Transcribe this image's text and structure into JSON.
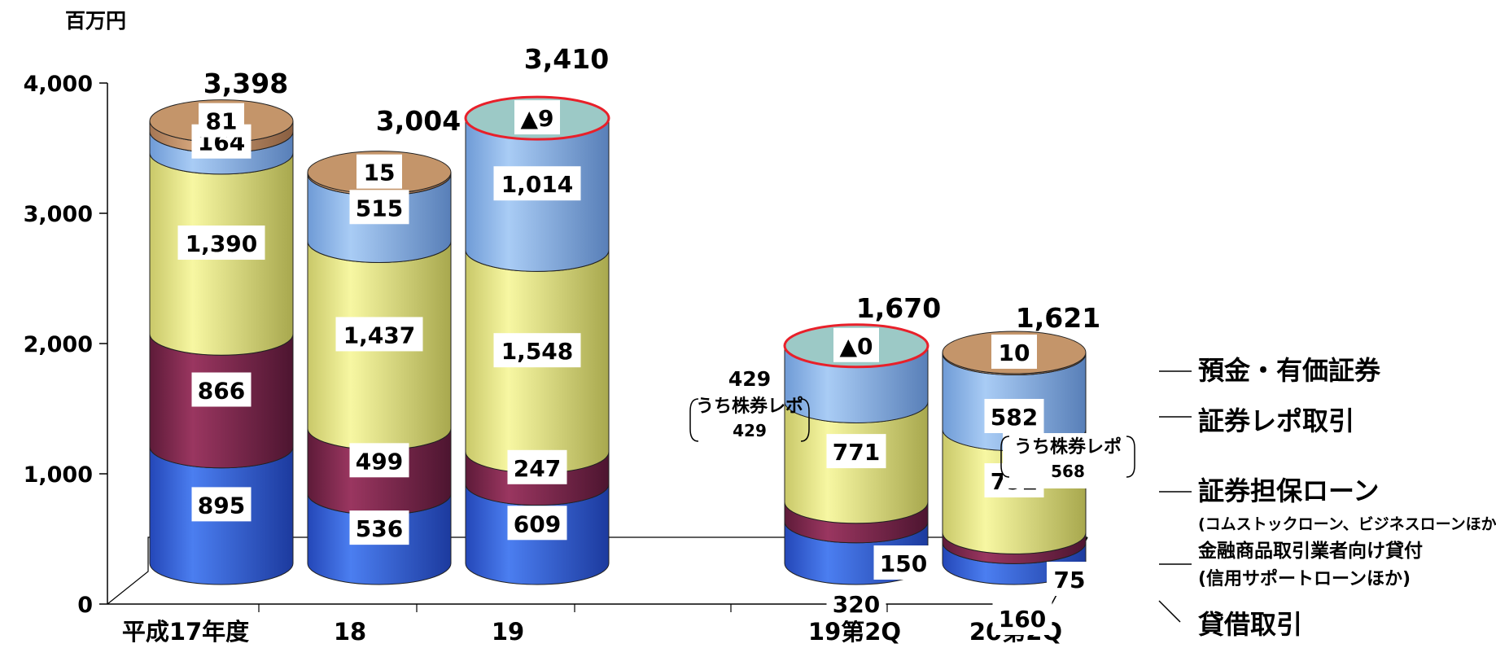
{
  "chart_data": {
    "type": "bar",
    "subtype": "stacked-cylinder-3d",
    "yunit": "百万円",
    "ylim": [
      0,
      4000
    ],
    "yticks": [
      "0",
      "1,000",
      "2,000",
      "3,000",
      "4,000"
    ],
    "categories": [
      "平成17年度",
      "18",
      "19",
      "19第2Q",
      "20第2Q"
    ],
    "series": [
      {
        "name": "貸借取引",
        "values": [
          895,
          536,
          609,
          320,
          160
        ]
      },
      {
        "name": "金融商品取引業者向け貸付",
        "values": [
          866,
          499,
          247,
          150,
          75
        ]
      },
      {
        "name": "証券担保ローン",
        "values": [
          1390,
          1437,
          1548,
          771,
          792
        ]
      },
      {
        "name": "証券レポ取引",
        "values": [
          164,
          515,
          1014,
          429,
          582
        ]
      },
      {
        "name": "預金・有価証券",
        "values": [
          81,
          15,
          -9,
          0,
          10
        ]
      }
    ],
    "totals": [
      "3,398",
      "3,004",
      "3,410",
      "1,670",
      "1,621"
    ],
    "value_labels": [
      [
        "895",
        "866",
        "1,390",
        "164",
        "81"
      ],
      [
        "536",
        "499",
        "1,437",
        "515",
        "15"
      ],
      [
        "609",
        "247",
        "1,548",
        "1,014",
        "▲9"
      ],
      [
        "320",
        "150",
        "771",
        "",
        "▲0"
      ],
      [
        "160",
        "75",
        "792",
        "582",
        "10"
      ]
    ],
    "notes": [
      {
        "value": "429",
        "label": "うち株券レポ",
        "sub": "429"
      },
      {
        "label": "うち株券レポ",
        "sub": "568"
      }
    ],
    "legend": [
      {
        "name": "預金・有価証券"
      },
      {
        "name": "証券レポ取引"
      },
      {
        "name": "証券担保ローン",
        "sub": "(コムストックローン、ビジネスローンほか)"
      },
      {
        "name": "金融商品取引業者向け貸付",
        "sub": "(信用サポートローンほか)"
      },
      {
        "name": "貸借取引"
      }
    ],
    "legend_placement": "right",
    "grid": false
  },
  "colors": {
    "lending": "#3f6fe0",
    "broker_loans": "#8e2f55",
    "securities_loans": "#f0f08c",
    "repo": "#94bdf0",
    "deposits": "#c4956a",
    "negative_top": "#9cc9c6",
    "negative_rim": "#e8202a"
  }
}
